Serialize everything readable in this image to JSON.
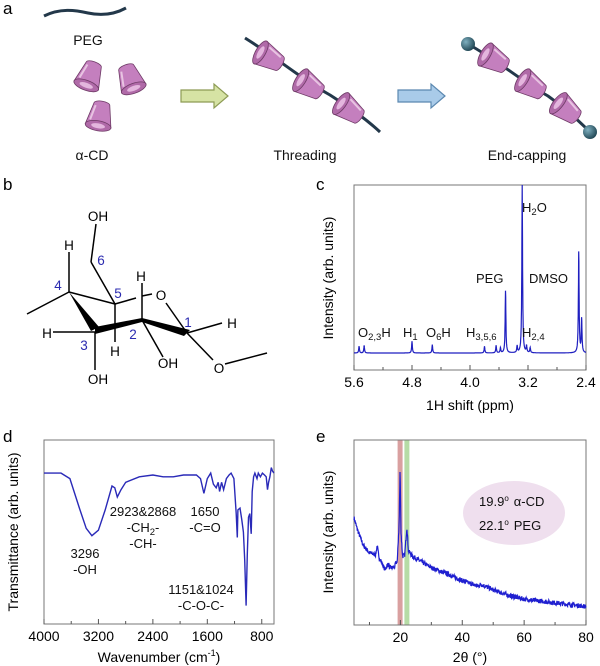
{
  "panel_labels": {
    "a": "a",
    "b": "b",
    "c": "c",
    "d": "d",
    "e": "e"
  },
  "colors": {
    "spectrum_line": "#1f1fc0",
    "cyclodextrin": "#c47fbe",
    "polymer_chain": "#23384a",
    "stopper": "#2e5a6b",
    "arrow_green": "#d6e3a4",
    "arrow_blue": "#a9cbe9",
    "band_alpha_cd": "#d9a0a0",
    "band_peg": "#b6dca6",
    "legend_ellipse": "#efdfee",
    "atom_number": "#2b2bb0"
  },
  "panel_a": {
    "peg_label": "PEG",
    "cd_label": "α-CD",
    "threading_label": "Threading",
    "endcapping_label": "End-capping"
  },
  "panel_b": {
    "atoms": {
      "oh6": "OH",
      "h4": "H",
      "h5": "H",
      "o_ring": "O",
      "h1": "H",
      "h3": "H",
      "oh3": "OH",
      "oh2": "OH",
      "h2": "H",
      "o1": "O"
    },
    "numbers": {
      "c1": "1",
      "c2": "2",
      "c3": "3",
      "c4": "4",
      "c5": "5",
      "c6": "6"
    }
  },
  "chart_data": [
    {
      "type": "line",
      "panel": "c",
      "xlabel": "1H shift (ppm)",
      "ylabel": "Intensity (arb. units)",
      "xlim": [
        5.6,
        2.4
      ],
      "x_reversed": true,
      "xticks": [
        "5.6",
        "4.8",
        "4.0",
        "3.2",
        "2.4"
      ],
      "grid": false,
      "peaks": [
        {
          "shift": 5.53,
          "intensity": 0.04
        },
        {
          "shift": 5.46,
          "intensity": 0.045
        },
        {
          "shift": 4.8,
          "intensity": 0.07
        },
        {
          "shift": 4.52,
          "intensity": 0.05
        },
        {
          "shift": 3.8,
          "intensity": 0.04
        },
        {
          "shift": 3.64,
          "intensity": 0.045
        },
        {
          "shift": 3.58,
          "intensity": 0.03
        },
        {
          "shift": 3.51,
          "intensity": 0.37
        },
        {
          "shift": 3.35,
          "intensity": 0.04
        },
        {
          "shift": 3.28,
          "intensity": 1.0
        },
        {
          "shift": 3.22,
          "intensity": 0.04
        },
        {
          "shift": 3.17,
          "intensity": 0.03
        },
        {
          "shift": 2.5,
          "intensity": 0.6
        },
        {
          "shift": 2.46,
          "intensity": 0.2
        }
      ],
      "annotations": {
        "o23h": {
          "pre": "O",
          "sub": "2,3",
          "post": "H"
        },
        "h1": {
          "pre": "H",
          "sub": "1",
          "post": ""
        },
        "o6h": {
          "pre": "O",
          "sub": "6",
          "post": "H"
        },
        "h356": {
          "pre": "H",
          "sub": "3,5,6",
          "post": ""
        },
        "peg": "PEG",
        "h2o": {
          "pre": "H",
          "sub": "2",
          "post": "O"
        },
        "h24": {
          "pre": "H",
          "sub": "2,4",
          "post": ""
        },
        "dmso": "DMSO"
      }
    },
    {
      "type": "line",
      "panel": "d",
      "xlabel_pre": "Wavenumber (cm",
      "xlabel_sup": "-1",
      "xlabel_post": ")",
      "ylabel": "Transmittance (arb. units)",
      "xlim": [
        4000,
        620
      ],
      "x_reversed": true,
      "xticks": [
        "4000",
        "3200",
        "2400",
        "1600",
        "800"
      ],
      "grid": false,
      "points": [
        [
          4000,
          0.82
        ],
        [
          3750,
          0.82
        ],
        [
          3620,
          0.79
        ],
        [
          3480,
          0.63
        ],
        [
          3380,
          0.52
        ],
        [
          3296,
          0.48
        ],
        [
          3200,
          0.51
        ],
        [
          3100,
          0.62
        ],
        [
          3000,
          0.75
        ],
        [
          2960,
          0.74
        ],
        [
          2923,
          0.69
        ],
        [
          2868,
          0.73
        ],
        [
          2800,
          0.77
        ],
        [
          2600,
          0.8
        ],
        [
          2400,
          0.81
        ],
        [
          2250,
          0.8
        ],
        [
          2100,
          0.8
        ],
        [
          1950,
          0.81
        ],
        [
          1760,
          0.81
        ],
        [
          1700,
          0.79
        ],
        [
          1650,
          0.71
        ],
        [
          1600,
          0.79
        ],
        [
          1550,
          0.82
        ],
        [
          1510,
          0.76
        ],
        [
          1470,
          0.74
        ],
        [
          1440,
          0.77
        ],
        [
          1420,
          0.72
        ],
        [
          1390,
          0.77
        ],
        [
          1360,
          0.73
        ],
        [
          1320,
          0.79
        ],
        [
          1280,
          0.81
        ],
        [
          1250,
          0.82
        ],
        [
          1210,
          0.79
        ],
        [
          1175,
          0.6
        ],
        [
          1160,
          0.47
        ],
        [
          1150,
          0.62
        ],
        [
          1120,
          0.63
        ],
        [
          1095,
          0.57
        ],
        [
          1070,
          0.5
        ],
        [
          1050,
          0.35
        ],
        [
          1030,
          0.1
        ],
        [
          1012,
          0.38
        ],
        [
          995,
          0.58
        ],
        [
          975,
          0.6
        ],
        [
          955,
          0.49
        ],
        [
          940,
          0.72
        ],
        [
          920,
          0.8
        ],
        [
          900,
          0.82
        ],
        [
          870,
          0.79
        ],
        [
          850,
          0.82
        ],
        [
          820,
          0.8
        ],
        [
          790,
          0.82
        ],
        [
          760,
          0.81
        ],
        [
          735,
          0.8
        ],
        [
          715,
          0.73
        ],
        [
          700,
          0.77
        ],
        [
          680,
          0.8
        ],
        [
          660,
          0.85
        ],
        [
          640,
          0.83
        ],
        [
          620,
          0.82
        ]
      ],
      "annotations": {
        "oh_value": "3296",
        "oh_group": "-OH",
        "ch_value": "2923&2868",
        "ch2_group": {
          "pre": "-CH",
          "sub": "2",
          "post": "-"
        },
        "ch_group": "-CH-",
        "co_value": "1650",
        "co_group": "-C=O",
        "coc_value": "1151&1024",
        "coc_group": "-C-O-C-"
      }
    },
    {
      "type": "line",
      "panel": "e",
      "xlabel": "2θ (°)",
      "ylabel": "Intensity (arb. units)",
      "xlim": [
        5,
        80
      ],
      "xticks": [
        "20",
        "40",
        "60",
        "80"
      ],
      "grid": false,
      "points": [
        [
          5,
          0.58
        ],
        [
          6,
          0.52
        ],
        [
          8,
          0.43
        ],
        [
          10,
          0.39
        ],
        [
          12,
          0.38
        ],
        [
          12.5,
          0.43
        ],
        [
          13,
          0.37
        ],
        [
          15,
          0.3
        ],
        [
          16,
          0.33
        ],
        [
          16.5,
          0.31
        ],
        [
          18,
          0.31
        ],
        [
          19,
          0.35
        ],
        [
          19.6,
          0.55
        ],
        [
          19.9,
          0.84
        ],
        [
          20.2,
          0.5
        ],
        [
          20.7,
          0.37
        ],
        [
          21.4,
          0.38
        ],
        [
          22.1,
          0.53
        ],
        [
          22.6,
          0.4
        ],
        [
          24,
          0.37
        ],
        [
          27,
          0.34
        ],
        [
          30,
          0.31
        ],
        [
          33,
          0.29
        ],
        [
          36,
          0.27
        ],
        [
          40,
          0.24
        ],
        [
          45,
          0.21
        ],
        [
          46,
          0.22
        ],
        [
          50,
          0.19
        ],
        [
          55,
          0.16
        ],
        [
          60,
          0.14
        ],
        [
          65,
          0.13
        ],
        [
          70,
          0.12
        ],
        [
          75,
          0.11
        ],
        [
          80,
          0.1
        ]
      ],
      "highlight_bands": [
        {
          "position": 19.9,
          "label": "α-CD"
        },
        {
          "position": 22.1,
          "label": "PEG"
        }
      ],
      "legend": {
        "placement": "top-right",
        "rows": [
          {
            "value": "19.9",
            "unit": "o",
            "name": "α-CD"
          },
          {
            "value": "22.1",
            "unit": "o",
            "name": "PEG"
          }
        ]
      }
    }
  ]
}
